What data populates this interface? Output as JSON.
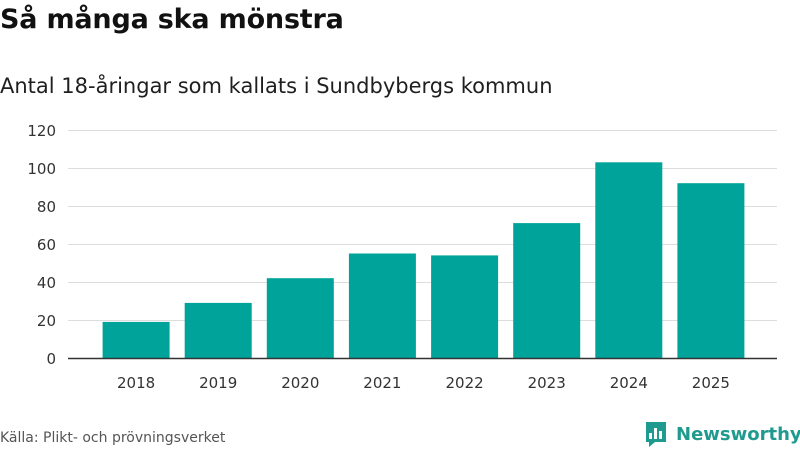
{
  "title": "Så många ska mönstra",
  "subtitle": "Antal 18-åringar som kallats i Sundbybergs kommun",
  "source": "Källa: Plikt- och prövningsverket",
  "brand": {
    "name": "Newsworthy",
    "icon": "newsworthy-logo-icon"
  },
  "colors": {
    "bar": "#00a39a",
    "grid": "#dddddd",
    "axis": "#333333",
    "brand": "#1f9a8e"
  },
  "chart_data": {
    "type": "bar",
    "categories": [
      "2018",
      "2019",
      "2020",
      "2021",
      "2022",
      "2023",
      "2024",
      "2025"
    ],
    "values": [
      19,
      29,
      42,
      55,
      54,
      71,
      103,
      92
    ],
    "yticks": [
      0,
      20,
      40,
      60,
      80,
      100,
      120
    ],
    "ylim": [
      0,
      120
    ],
    "grid": true,
    "legend": "none",
    "title": "Så många ska mönstra",
    "subtitle": "Antal 18-åringar som kallats i Sundbybergs kommun"
  }
}
